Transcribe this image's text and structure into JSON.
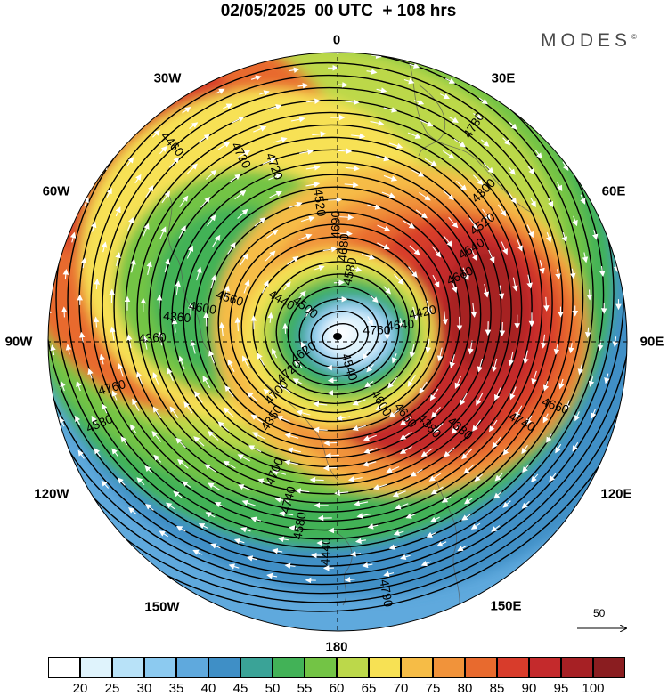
{
  "title": "02/05/2025  00 UTC  + 108 hrs",
  "brand": {
    "name": "MODES",
    "mark": "©"
  },
  "longitude_labels": [
    "0",
    "30E",
    "60E",
    "90E",
    "120E",
    "150E",
    "180",
    "150W",
    "120W",
    "90W",
    "60W",
    "30W"
  ],
  "colorbar": {
    "ticks": [
      "20",
      "25",
      "30",
      "35",
      "40",
      "45",
      "50",
      "55",
      "60",
      "65",
      "70",
      "75",
      "80",
      "85",
      "90",
      "95",
      "100"
    ],
    "colors": [
      "#ffffff",
      "#dff3fc",
      "#b8e2f8",
      "#8ccaf0",
      "#5fa9dd",
      "#3f8fc6",
      "#3aa397",
      "#42b257",
      "#73c445",
      "#bcd84a",
      "#f7e154",
      "#f6bc46",
      "#f1933a",
      "#e86a2e",
      "#d83c2b",
      "#c42a2c",
      "#a62024",
      "#8a1d20"
    ]
  },
  "reference_vector": {
    "label": "50"
  },
  "contours": {
    "labels": [
      "4760",
      "4720",
      "4680",
      "4660",
      "4600",
      "4640",
      "4740",
      "4720",
      "4660",
      "4580",
      "4520",
      "4540",
      "4440",
      "4420",
      "4350",
      "4520",
      "4380",
      "4360",
      "4300",
      "4440",
      "4460",
      "4500",
      "4620",
      "4580",
      "4600",
      "4560",
      "4660",
      "4700",
      "4720",
      "4740",
      "4760",
      "4780",
      "4790",
      "4500",
      "4640",
      "4700",
      "4690",
      "4380",
      "4360",
      "4520",
      "4580"
    ]
  },
  "colors": {
    "land_outline": "#444444",
    "contour": "#000000",
    "vector": "#ffffff"
  }
}
